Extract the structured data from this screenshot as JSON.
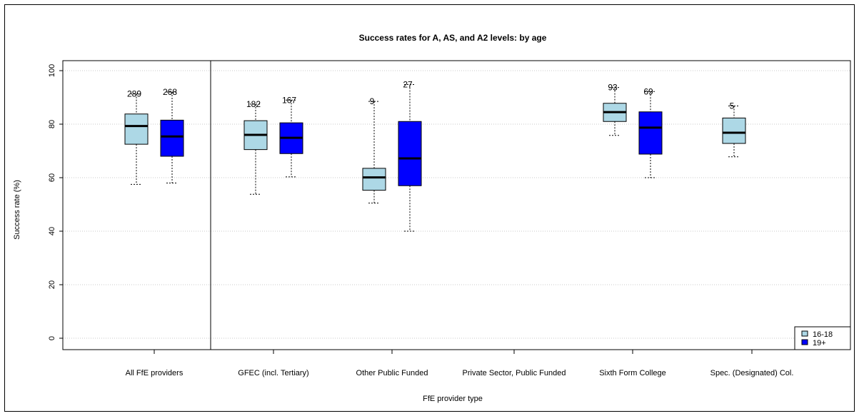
{
  "chart_data": {
    "type": "boxplot",
    "title": "Success rates for A, AS, and A2 levels: by age",
    "xlabel": "FfE provider type",
    "ylabel": "Success rate (%)",
    "ylim": [
      0,
      100
    ],
    "yticks": [
      0,
      20,
      40,
      60,
      80,
      100
    ],
    "grid": "horizontal dotted",
    "legend_position": "bottom-right",
    "categories": [
      "All FfE providers",
      "GFEC (incl. Tertiary)",
      "Other Public Funded",
      "Private Sector, Public Funded",
      "Sixth Form College",
      "Spec. (Designated) Col."
    ],
    "series": [
      {
        "name": "16-18",
        "color": "#add8e6",
        "boxes": [
          {
            "min": 57.5,
            "q1": 72.5,
            "median": 79.3,
            "q3": 83.8,
            "max": 91.3,
            "n": "289"
          },
          {
            "min": 53.8,
            "q1": 70.5,
            "median": 76.0,
            "q3": 81.3,
            "max": 87.5,
            "n": "182"
          },
          {
            "min": 50.5,
            "q1": 55.3,
            "median": 60.1,
            "q3": 63.5,
            "max": 88.5,
            "n": "9"
          },
          null,
          {
            "min": 75.8,
            "q1": 81.0,
            "median": 84.5,
            "q3": 87.8,
            "max": 93.7,
            "n": "93"
          },
          {
            "min": 67.8,
            "q1": 72.8,
            "median": 76.8,
            "q3": 82.3,
            "max": 86.8,
            "n": "5"
          }
        ]
      },
      {
        "name": "19+",
        "color": "#0000ff",
        "boxes": [
          {
            "min": 58.0,
            "q1": 68.0,
            "median": 75.4,
            "q3": 81.5,
            "max": 92.0,
            "n": "268"
          },
          {
            "min": 60.3,
            "q1": 69.0,
            "median": 74.9,
            "q3": 80.5,
            "max": 89.0,
            "n": "167"
          },
          {
            "min": 40.0,
            "q1": 57.0,
            "median": 67.2,
            "q3": 81.0,
            "max": 94.8,
            "n": "27"
          },
          null,
          {
            "min": 60.0,
            "q1": 68.8,
            "median": 78.7,
            "q3": 84.6,
            "max": 92.2,
            "n": "69"
          },
          null
        ]
      }
    ]
  }
}
